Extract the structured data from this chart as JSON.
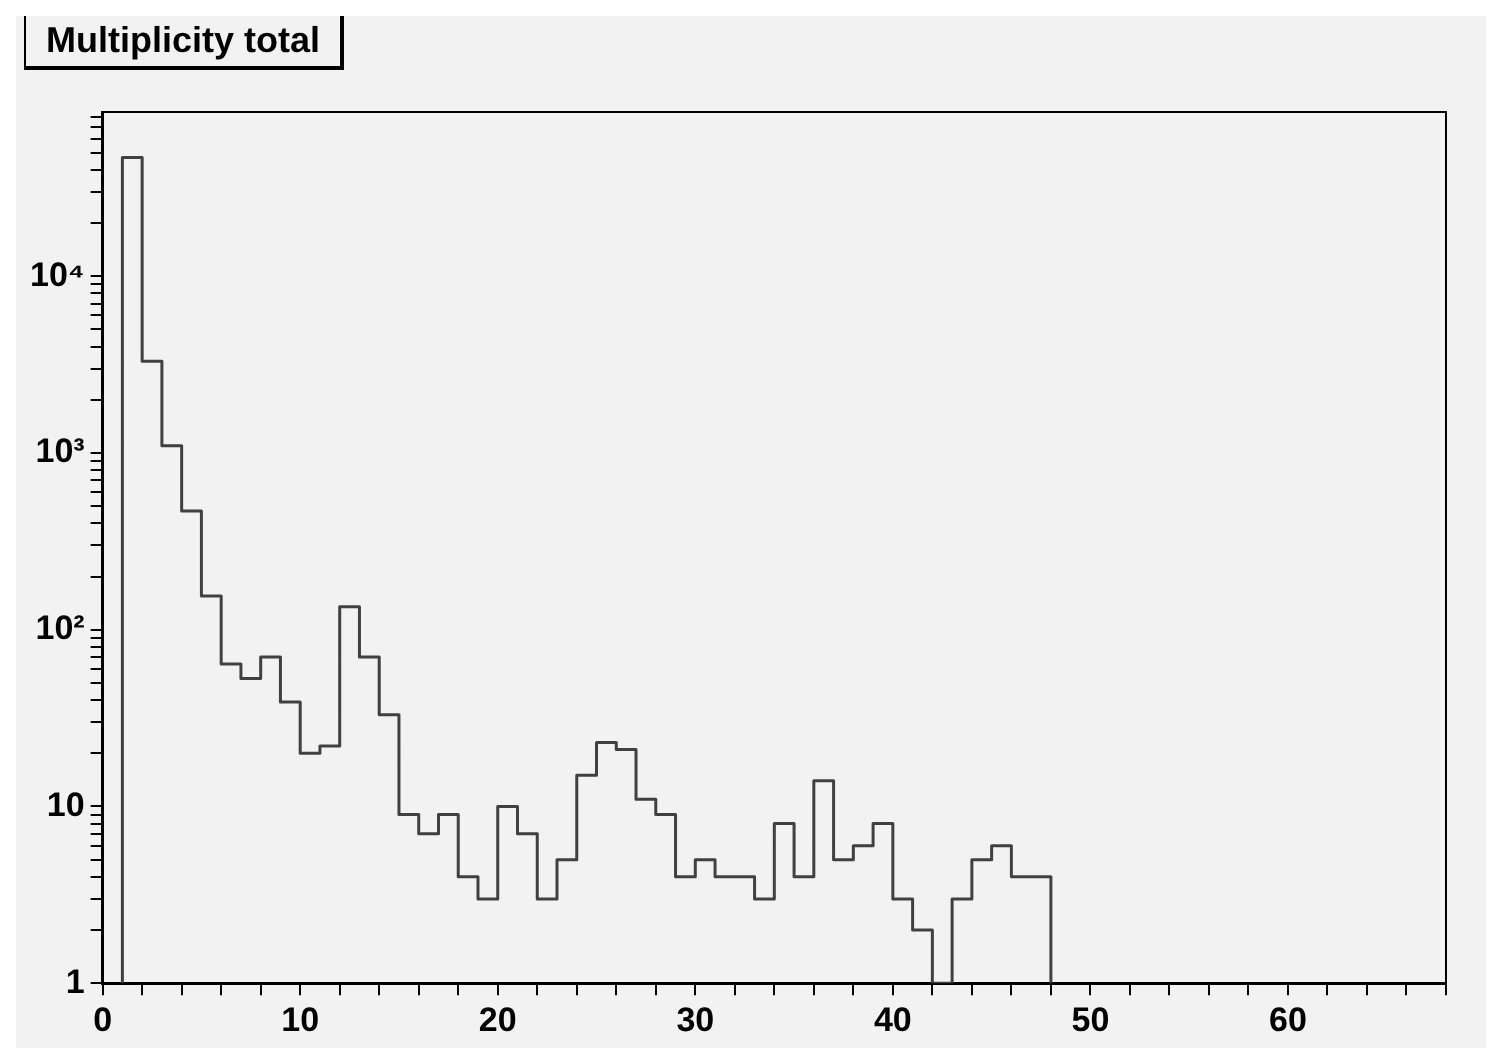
{
  "chart_data": {
    "type": "histogram",
    "title": "Multiplicity total",
    "bins": [
      1,
      2,
      3,
      4,
      5,
      6,
      7,
      8,
      9,
      10,
      11,
      12,
      13,
      14,
      15,
      16,
      17,
      18,
      19,
      20,
      21,
      22,
      23,
      24,
      25,
      26,
      27,
      28,
      29,
      30,
      31,
      32,
      33,
      34,
      35,
      36,
      37,
      38,
      39,
      40,
      41,
      42,
      43,
      44,
      45,
      46,
      47,
      48
    ],
    "values": [
      47000,
      3300,
      1100,
      470,
      155,
      64,
      53,
      70,
      39,
      20,
      22,
      135,
      70,
      33,
      9,
      7,
      9,
      4,
      3,
      10,
      7,
      3,
      5,
      15,
      23,
      21,
      11,
      9,
      4,
      5,
      4,
      4,
      3,
      8,
      4,
      14,
      5,
      6,
      8,
      3,
      2,
      null,
      3,
      5,
      6,
      4,
      4
    ],
    "color": "#404040",
    "log": "y",
    "grid": false,
    "legend": false,
    "xlim": [
      0,
      68
    ],
    "xticks": [
      0,
      {
        "value": 2,
        "label": null
      },
      {
        "value": 4,
        "label": null
      },
      {
        "value": 6,
        "label": null
      },
      {
        "value": 8,
        "label": null
      },
      10,
      {
        "value": 12,
        "label": null
      },
      {
        "value": 14,
        "label": null
      },
      {
        "value": 16,
        "label": null
      },
      {
        "value": 18,
        "label": null
      },
      20,
      {
        "value": 22,
        "label": null
      },
      {
        "value": 24,
        "label": null
      },
      {
        "value": 26,
        "label": null
      },
      {
        "value": 28,
        "label": null
      },
      30,
      {
        "value": 32,
        "label": null
      },
      {
        "value": 34,
        "label": null
      },
      {
        "value": 36,
        "label": null
      },
      {
        "value": 38,
        "label": null
      },
      40,
      {
        "value": 42,
        "label": null
      },
      {
        "value": 44,
        "label": null
      },
      {
        "value": 46,
        "label": null
      },
      {
        "value": 48,
        "label": null
      },
      50,
      {
        "value": 52,
        "label": null
      },
      {
        "value": 54,
        "label": null
      },
      {
        "value": 56,
        "label": null
      },
      {
        "value": 58,
        "label": null
      },
      60,
      {
        "value": 62,
        "label": null
      },
      {
        "value": 64,
        "label": null
      },
      {
        "value": 66,
        "label": null
      },
      {
        "value": 68,
        "label": null
      }
    ],
    "ylim": [
      1,
      85000
    ],
    "yticks": [
      1,
      {
        "value": 2,
        "label": null
      },
      {
        "value": 3,
        "label": null
      },
      {
        "value": 4,
        "label": null
      },
      {
        "value": 5,
        "label": null
      },
      {
        "value": 6,
        "label": null
      },
      {
        "value": 7,
        "label": null
      },
      {
        "value": 8,
        "label": null
      },
      {
        "value": 9,
        "label": null
      },
      10,
      {
        "value": 20,
        "label": null
      },
      {
        "value": 30,
        "label": null
      },
      {
        "value": 40,
        "label": null
      },
      {
        "value": 50,
        "label": null
      },
      {
        "value": 60,
        "label": null
      },
      {
        "value": 70,
        "label": null
      },
      {
        "value": 80,
        "label": null
      },
      {
        "value": 90,
        "label": null
      },
      {
        "value": 100,
        "label": "10²"
      },
      {
        "value": 200,
        "label": null
      },
      {
        "value": 300,
        "label": null
      },
      {
        "value": 400,
        "label": null
      },
      {
        "value": 500,
        "label": null
      },
      {
        "value": 600,
        "label": null
      },
      {
        "value": 700,
        "label": null
      },
      {
        "value": 800,
        "label": null
      },
      {
        "value": 900,
        "label": null
      },
      {
        "value": 1000,
        "label": "10³"
      },
      {
        "value": 2000,
        "label": null
      },
      {
        "value": 3000,
        "label": null
      },
      {
        "value": 4000,
        "label": null
      },
      {
        "value": 5000,
        "label": null
      },
      {
        "value": 6000,
        "label": null
      },
      {
        "value": 7000,
        "label": null
      },
      {
        "value": 8000,
        "label": null
      },
      {
        "value": 9000,
        "label": null
      },
      {
        "value": 10000,
        "label": "10⁴"
      },
      {
        "value": 20000,
        "label": null
      },
      {
        "value": 30000,
        "label": null
      },
      {
        "value": 40000,
        "label": null
      },
      {
        "value": 50000,
        "label": null
      },
      {
        "value": 60000,
        "label": null
      },
      {
        "value": 70000,
        "label": null
      },
      {
        "value": 80000,
        "label": null
      }
    ]
  }
}
